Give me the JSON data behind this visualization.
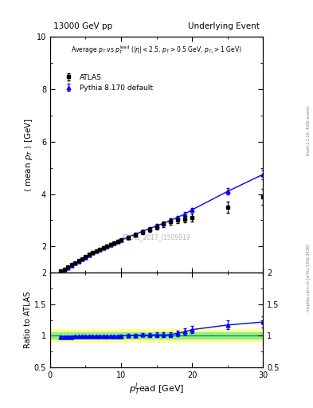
{
  "title_left": "13000 GeV pp",
  "title_right": "Underlying Event",
  "ylabel_main": "$\\langle$ mean $p_T$ $\\rangle$ [GeV]",
  "ylabel_ratio": "Ratio to ATLAS",
  "xlabel": "$p_T^l$ead [GeV]",
  "annotation": "Average $p_T$ vs $p_T^{\\mathrm{lead}}$ ($|\\eta| < 2.5$, $p_T > 0.5$ GeV, $p_{T_1} > 1$ GeV)",
  "watermark": "ATLAS_2017_I1509919",
  "rivet_label": "Rivet 3.1.10, 400k events",
  "side_label": "mcplots.cern.ch [arXiv:1306.3436]",
  "legend": [
    "ATLAS",
    "Pythia 8.170 default"
  ],
  "ylim_main": [
    1.0,
    10.0
  ],
  "ylim_ratio": [
    0.5,
    2.0
  ],
  "xlim": [
    0,
    30
  ],
  "atlas_x": [
    1.5,
    2.0,
    2.5,
    3.0,
    3.5,
    4.0,
    4.5,
    5.0,
    5.5,
    6.0,
    6.5,
    7.0,
    7.5,
    8.0,
    8.5,
    9.0,
    9.5,
    10.0,
    11.0,
    12.0,
    13.0,
    14.0,
    15.0,
    16.0,
    17.0,
    18.0,
    19.0,
    20.0,
    25.0,
    30.0
  ],
  "atlas_y": [
    1.08,
    1.14,
    1.22,
    1.3,
    1.38,
    1.46,
    1.54,
    1.62,
    1.7,
    1.78,
    1.84,
    1.9,
    1.96,
    2.02,
    2.08,
    2.14,
    2.2,
    2.25,
    2.35,
    2.45,
    2.55,
    2.65,
    2.75,
    2.85,
    2.95,
    3.0,
    3.05,
    3.1,
    3.5,
    3.9
  ],
  "atlas_yerr": [
    0.03,
    0.03,
    0.03,
    0.03,
    0.03,
    0.03,
    0.03,
    0.03,
    0.03,
    0.03,
    0.03,
    0.03,
    0.04,
    0.04,
    0.04,
    0.04,
    0.04,
    0.05,
    0.06,
    0.07,
    0.08,
    0.09,
    0.1,
    0.1,
    0.12,
    0.12,
    0.13,
    0.15,
    0.2,
    0.3
  ],
  "pythia_x": [
    1.5,
    2.0,
    2.5,
    3.0,
    3.5,
    4.0,
    4.5,
    5.0,
    5.5,
    6.0,
    6.5,
    7.0,
    7.5,
    8.0,
    8.5,
    9.0,
    9.5,
    10.0,
    11.0,
    12.0,
    13.0,
    14.0,
    15.0,
    16.0,
    17.0,
    18.0,
    19.0,
    20.0,
    25.0,
    30.0
  ],
  "pythia_y": [
    1.06,
    1.12,
    1.2,
    1.28,
    1.36,
    1.44,
    1.52,
    1.6,
    1.68,
    1.76,
    1.82,
    1.89,
    1.95,
    2.01,
    2.07,
    2.13,
    2.19,
    2.24,
    2.36,
    2.47,
    2.58,
    2.68,
    2.79,
    2.89,
    3.0,
    3.12,
    3.24,
    3.4,
    4.1,
    4.75
  ],
  "pythia_yerr": [
    0.01,
    0.01,
    0.01,
    0.01,
    0.01,
    0.01,
    0.01,
    0.01,
    0.01,
    0.01,
    0.01,
    0.01,
    0.01,
    0.01,
    0.02,
    0.02,
    0.02,
    0.02,
    0.02,
    0.03,
    0.03,
    0.03,
    0.04,
    0.04,
    0.05,
    0.06,
    0.07,
    0.08,
    0.12,
    0.18
  ],
  "atlas_color": "black",
  "pythia_color": "blue",
  "ratio_band_color_green": "#90ee90",
  "ratio_band_color_yellow": "#ffff99",
  "ratio_pythia_x": [
    1.5,
    2.0,
    2.5,
    3.0,
    3.5,
    4.0,
    4.5,
    5.0,
    5.5,
    6.0,
    6.5,
    7.0,
    7.5,
    8.0,
    8.5,
    9.0,
    9.5,
    10.0,
    11.0,
    12.0,
    13.0,
    14.0,
    15.0,
    16.0,
    17.0,
    18.0,
    19.0,
    20.0,
    25.0,
    30.0
  ],
  "ratio_pythia_y": [
    0.982,
    0.982,
    0.984,
    0.984,
    0.986,
    0.986,
    0.987,
    0.988,
    0.988,
    0.989,
    0.989,
    0.995,
    0.995,
    0.995,
    0.995,
    0.995,
    0.995,
    0.996,
    1.004,
    1.008,
    1.012,
    1.011,
    1.015,
    1.014,
    1.017,
    1.04,
    1.062,
    1.097,
    1.17,
    1.218
  ],
  "ratio_pythia_yerr": [
    0.01,
    0.01,
    0.01,
    0.01,
    0.01,
    0.01,
    0.01,
    0.01,
    0.01,
    0.01,
    0.01,
    0.01,
    0.01,
    0.01,
    0.015,
    0.015,
    0.015,
    0.02,
    0.02,
    0.025,
    0.025,
    0.03,
    0.035,
    0.035,
    0.04,
    0.045,
    0.05,
    0.06,
    0.07,
    0.09
  ]
}
